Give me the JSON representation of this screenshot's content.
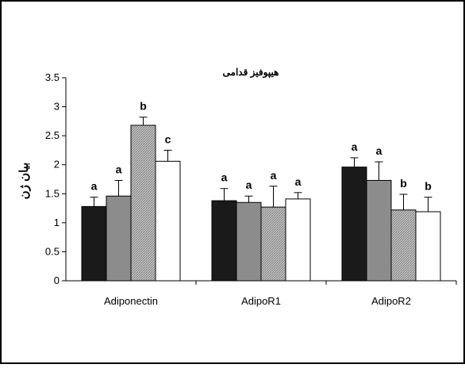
{
  "chart_data": {
    "type": "bar",
    "title": "هیپوفیز قدامی",
    "ylabel": "بیان ژن",
    "xlabel": "",
    "ylim": [
      0,
      3.5
    ],
    "yticks": [
      "0",
      "0.5",
      "1",
      "1.5",
      "2",
      "2.5",
      "3",
      "3.5"
    ],
    "categories": [
      "Adiponectin",
      "AdipoR1",
      "AdipoR2"
    ],
    "grid": false,
    "series": [
      {
        "color": "#1a1a1a",
        "pattern": "solid",
        "values": [
          1.28,
          1.38,
          1.96
        ],
        "errors": [
          0.16,
          0.21,
          0.16
        ],
        "letters": [
          "a",
          "a",
          "a"
        ]
      },
      {
        "color": "#8c8c8c",
        "pattern": "solid",
        "values": [
          1.46,
          1.35,
          1.73
        ],
        "errors": [
          0.27,
          0.11,
          0.32
        ],
        "letters": [
          "a",
          "a",
          "a"
        ]
      },
      {
        "color": "#b4b4b4",
        "pattern": "hatched",
        "values": [
          2.68,
          1.27,
          1.22
        ],
        "errors": [
          0.14,
          0.36,
          0.27
        ],
        "letters": [
          "b",
          "a",
          "b"
        ]
      },
      {
        "color": "#ffffff",
        "pattern": "open",
        "values": [
          2.06,
          1.41,
          1.19
        ],
        "errors": [
          0.19,
          0.11,
          0.25
        ],
        "letters": [
          "c",
          "a",
          "b"
        ]
      }
    ]
  }
}
